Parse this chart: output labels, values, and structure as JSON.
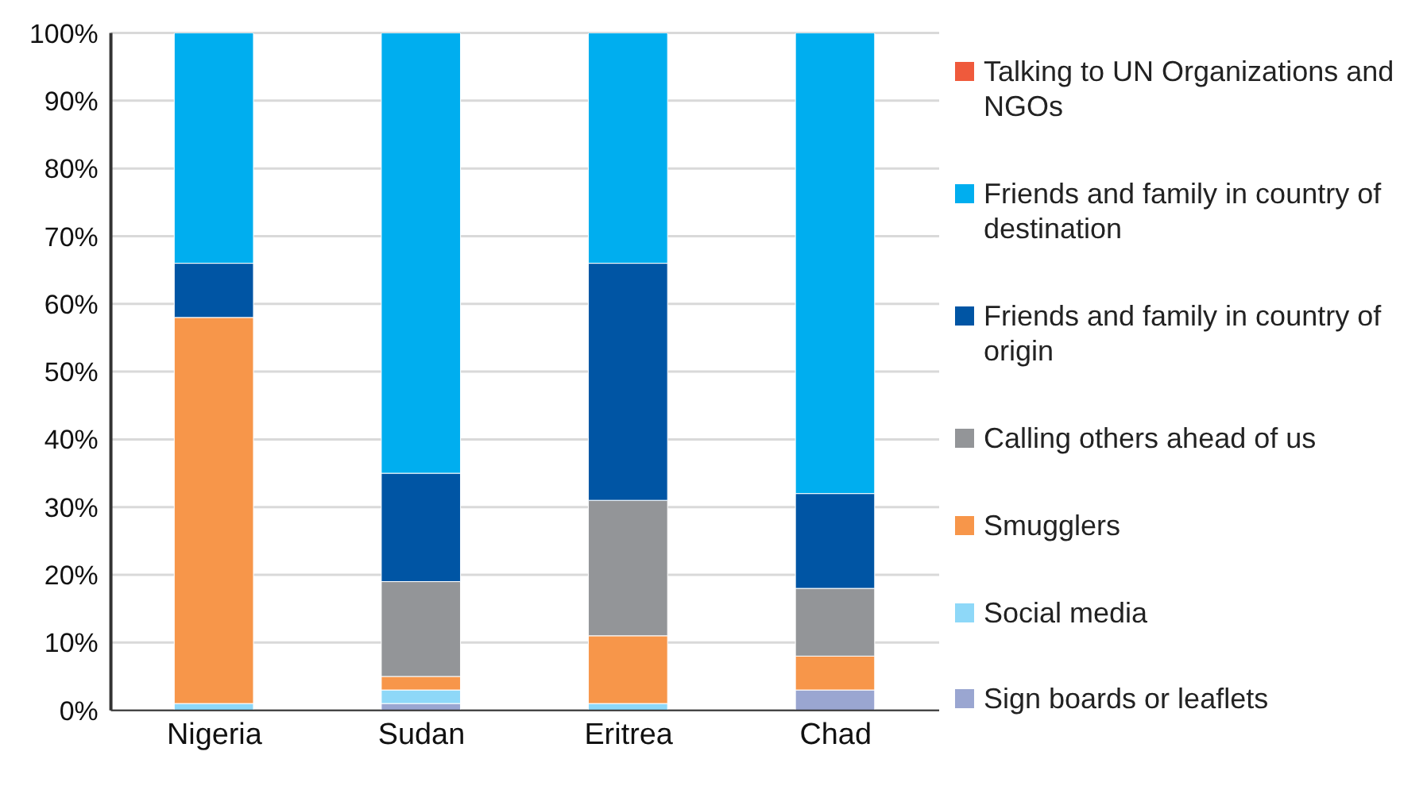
{
  "chart_data": {
    "type": "bar",
    "stacked": true,
    "categories": [
      "Nigeria",
      "Sudan",
      "Eritrea",
      "Chad"
    ],
    "series": [
      {
        "name": "Sign boards or leaflets",
        "color": "#9aa6d1",
        "values": [
          0,
          1,
          0,
          3
        ]
      },
      {
        "name": "Social media",
        "color": "#8ed8f8",
        "values": [
          1,
          2,
          1,
          0
        ]
      },
      {
        "name": "Smugglers",
        "color": "#f7964a",
        "values": [
          57,
          2,
          10,
          5
        ]
      },
      {
        "name": "Calling others ahead of us",
        "color": "#939598",
        "values": [
          0,
          14,
          20,
          10
        ]
      },
      {
        "name": "Friends and family in country of origin",
        "color": "#0055a4",
        "values": [
          8,
          16,
          35,
          14
        ]
      },
      {
        "name": "Friends and family in country of destination",
        "color": "#00aeef",
        "values": [
          34,
          65,
          34,
          68
        ]
      },
      {
        "name": "Talking to UN Organizations and NGOs",
        "color": "#ef5a3c",
        "values": [
          0,
          0,
          0,
          0
        ]
      }
    ],
    "ylim": [
      0,
      100
    ],
    "yticks": [
      {
        "value": 0,
        "label": "0%"
      },
      {
        "value": 10,
        "label": "10%"
      },
      {
        "value": 20,
        "label": "20%"
      },
      {
        "value": 30,
        "label": "30%"
      },
      {
        "value": 40,
        "label": "40%"
      },
      {
        "value": 50,
        "label": "50%"
      },
      {
        "value": 60,
        "label": "60%"
      },
      {
        "value": 70,
        "label": "70%"
      },
      {
        "value": 80,
        "label": "80%"
      },
      {
        "value": 90,
        "label": "90%"
      },
      {
        "value": 100,
        "label": "100%"
      }
    ],
    "grid": "y",
    "legend": "right"
  }
}
